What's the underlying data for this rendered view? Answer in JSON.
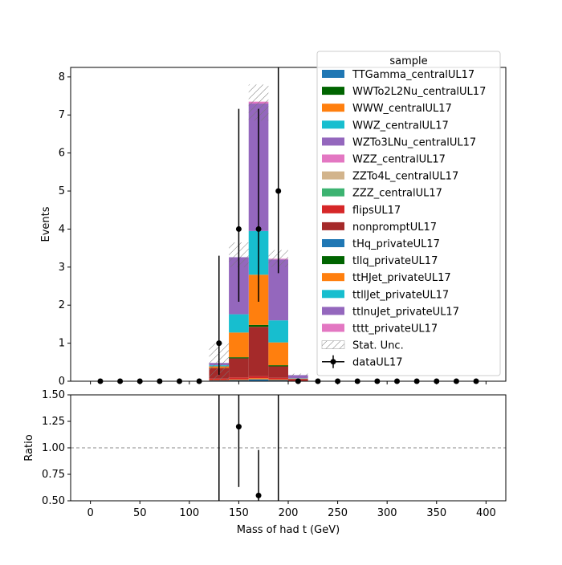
{
  "chart_data": {
    "type": "bar",
    "stacked": true,
    "main": {
      "ylabel": "Events",
      "ylim": [
        0,
        8.25
      ],
      "yticks": [
        0,
        1,
        2,
        3,
        4,
        5,
        6,
        7,
        8
      ],
      "bin_edges": [
        0,
        20,
        40,
        60,
        80,
        100,
        120,
        140,
        160,
        180,
        200,
        220,
        240,
        260,
        280,
        300,
        320,
        340,
        360,
        380,
        400
      ],
      "series": [
        {
          "name": "TTGamma_centralUL17",
          "color": "#1f77b4",
          "values": [
            0,
            0,
            0,
            0,
            0,
            0,
            0.02,
            0.03,
            0.05,
            0.03,
            0,
            0,
            0,
            0,
            0,
            0,
            0,
            0,
            0,
            0
          ]
        },
        {
          "name": "WWTo2L2Nu_centralUL17",
          "color": "#006400",
          "values": [
            0,
            0,
            0,
            0,
            0,
            0,
            0,
            0,
            0,
            0,
            0,
            0,
            0,
            0,
            0,
            0,
            0,
            0,
            0,
            0
          ]
        },
        {
          "name": "WWW_centralUL17",
          "color": "#ff7f0e",
          "values": [
            0,
            0,
            0,
            0,
            0,
            0,
            0.01,
            0.02,
            0.03,
            0.02,
            0,
            0,
            0,
            0,
            0,
            0,
            0,
            0,
            0,
            0
          ]
        },
        {
          "name": "WWZ_centralUL17",
          "color": "#17becf",
          "values": [
            0,
            0,
            0,
            0,
            0,
            0,
            0,
            0,
            0,
            0,
            0,
            0,
            0,
            0,
            0,
            0,
            0,
            0,
            0,
            0
          ]
        },
        {
          "name": "WZTo3LNu_centralUL17",
          "color": "#9467bd",
          "values": [
            0,
            0,
            0,
            0,
            0,
            0,
            0,
            0,
            0,
            0,
            0,
            0,
            0,
            0,
            0,
            0,
            0,
            0,
            0,
            0
          ]
        },
        {
          "name": "WZZ_centralUL17",
          "color": "#e377c2",
          "values": [
            0,
            0,
            0,
            0,
            0,
            0,
            0,
            0,
            0,
            0,
            0,
            0,
            0,
            0,
            0,
            0,
            0,
            0,
            0,
            0
          ]
        },
        {
          "name": "ZZTo4L_centralUL17",
          "color": "#d2b48c",
          "values": [
            0,
            0,
            0,
            0,
            0,
            0,
            0,
            0,
            0,
            0,
            0,
            0,
            0,
            0,
            0,
            0,
            0,
            0,
            0,
            0
          ]
        },
        {
          "name": "ZZZ_centralUL17",
          "color": "#3cb371",
          "values": [
            0,
            0,
            0,
            0,
            0,
            0,
            0,
            0,
            0,
            0,
            0,
            0,
            0,
            0,
            0,
            0,
            0,
            0,
            0,
            0
          ]
        },
        {
          "name": "flipsUL17",
          "color": "#d62728",
          "values": [
            0,
            0,
            0,
            0,
            0,
            0,
            0.04,
            0.05,
            0.05,
            0.04,
            0.03,
            0,
            0,
            0,
            0,
            0,
            0,
            0,
            0,
            0
          ]
        },
        {
          "name": "nonpromptUL17",
          "color": "#a52a2a",
          "values": [
            0,
            0,
            0,
            0,
            0,
            0,
            0.28,
            0.5,
            1.3,
            0.3,
            0.03,
            0,
            0,
            0,
            0,
            0,
            0,
            0,
            0,
            0
          ]
        },
        {
          "name": "tHq_privateUL17",
          "color": "#1f77b4",
          "values": [
            0,
            0,
            0,
            0,
            0,
            0,
            0,
            0,
            0,
            0,
            0,
            0,
            0,
            0,
            0,
            0,
            0,
            0,
            0,
            0
          ]
        },
        {
          "name": "tllq_privateUL17",
          "color": "#006400",
          "values": [
            0,
            0,
            0,
            0,
            0,
            0,
            0,
            0.03,
            0.05,
            0.03,
            0,
            0,
            0,
            0,
            0,
            0,
            0,
            0,
            0,
            0
          ]
        },
        {
          "name": "ttHJet_privateUL17",
          "color": "#ff7f0e",
          "values": [
            0,
            0,
            0,
            0,
            0,
            0,
            0.04,
            0.65,
            1.32,
            0.6,
            0.01,
            0,
            0,
            0,
            0,
            0,
            0,
            0,
            0,
            0
          ]
        },
        {
          "name": "ttllJet_privateUL17",
          "color": "#17becf",
          "values": [
            0,
            0,
            0,
            0,
            0,
            0,
            0.03,
            0.48,
            1.15,
            0.58,
            0.01,
            0,
            0,
            0,
            0,
            0,
            0,
            0,
            0,
            0
          ]
        },
        {
          "name": "ttlnuJet_privateUL17",
          "color": "#9467bd",
          "values": [
            0,
            0,
            0,
            0,
            0,
            0,
            0.06,
            1.5,
            3.35,
            1.6,
            0.08,
            0,
            0,
            0,
            0,
            0,
            0,
            0,
            0,
            0
          ]
        },
        {
          "name": "tttt_privateUL17",
          "color": "#e377c2",
          "values": [
            0,
            0,
            0,
            0,
            0,
            0,
            0,
            0,
            0.05,
            0.02,
            0,
            0,
            0,
            0,
            0,
            0,
            0,
            0,
            0,
            0
          ]
        }
      ],
      "stat_unc": {
        "name": "Stat. Unc.",
        "lower": [
          0,
          0,
          0,
          0,
          0,
          0,
          0,
          3.0,
          6.85,
          3.0,
          0.12,
          0,
          0,
          0,
          0,
          0,
          0,
          0,
          0,
          0
        ],
        "upper": [
          0,
          0,
          0,
          0,
          0,
          0,
          1.0,
          3.65,
          7.8,
          3.45,
          0.2,
          0,
          0,
          0,
          0,
          0,
          0,
          0,
          0,
          0
        ]
      },
      "data": {
        "name": "dataUL17",
        "x": [
          10,
          30,
          50,
          70,
          90,
          110,
          130,
          150,
          170,
          190,
          210,
          230,
          250,
          270,
          290,
          310,
          330,
          350,
          370,
          390
        ],
        "y": [
          0,
          0,
          0,
          0,
          0,
          0,
          1,
          4,
          4,
          5,
          0,
          0,
          0,
          0,
          0,
          0,
          0,
          0,
          0,
          0
        ],
        "err_low": [
          0,
          0,
          0,
          0,
          0,
          0,
          0.83,
          1.91,
          1.91,
          2.16,
          0,
          0,
          0,
          0,
          0,
          0,
          0,
          0,
          0,
          0
        ],
        "err_high": [
          0,
          0,
          0,
          0,
          0,
          0,
          2.3,
          3.16,
          3.16,
          3.38,
          0,
          0,
          0,
          0,
          0,
          0,
          0,
          0,
          0,
          0
        ]
      },
      "legend": {
        "title": "sample",
        "position": "upper-right"
      }
    },
    "ratio": {
      "ylabel": "Ratio",
      "xlabel": "Mass of had t (GeV)",
      "ylim": [
        0.5,
        1.5
      ],
      "yticks": [
        "0.50",
        "0.75",
        "1.00",
        "1.25",
        "1.50"
      ],
      "reference_line": 1.0,
      "points": [
        {
          "x": 130,
          "y": null,
          "err_low": 1.0,
          "err_high": 3.3
        },
        {
          "x": 150,
          "y": 1.2,
          "err_low": 0.57,
          "err_high": 0.9
        },
        {
          "x": 170,
          "y": 0.55,
          "err_low": 0.26,
          "err_high": 0.43
        },
        {
          "x": 190,
          "y": null,
          "err_low": 0.6,
          "err_high": 1.0
        }
      ]
    },
    "xlim": [
      -20,
      420
    ],
    "xticks": [
      0,
      50,
      100,
      150,
      200,
      250,
      300,
      350,
      400
    ]
  }
}
